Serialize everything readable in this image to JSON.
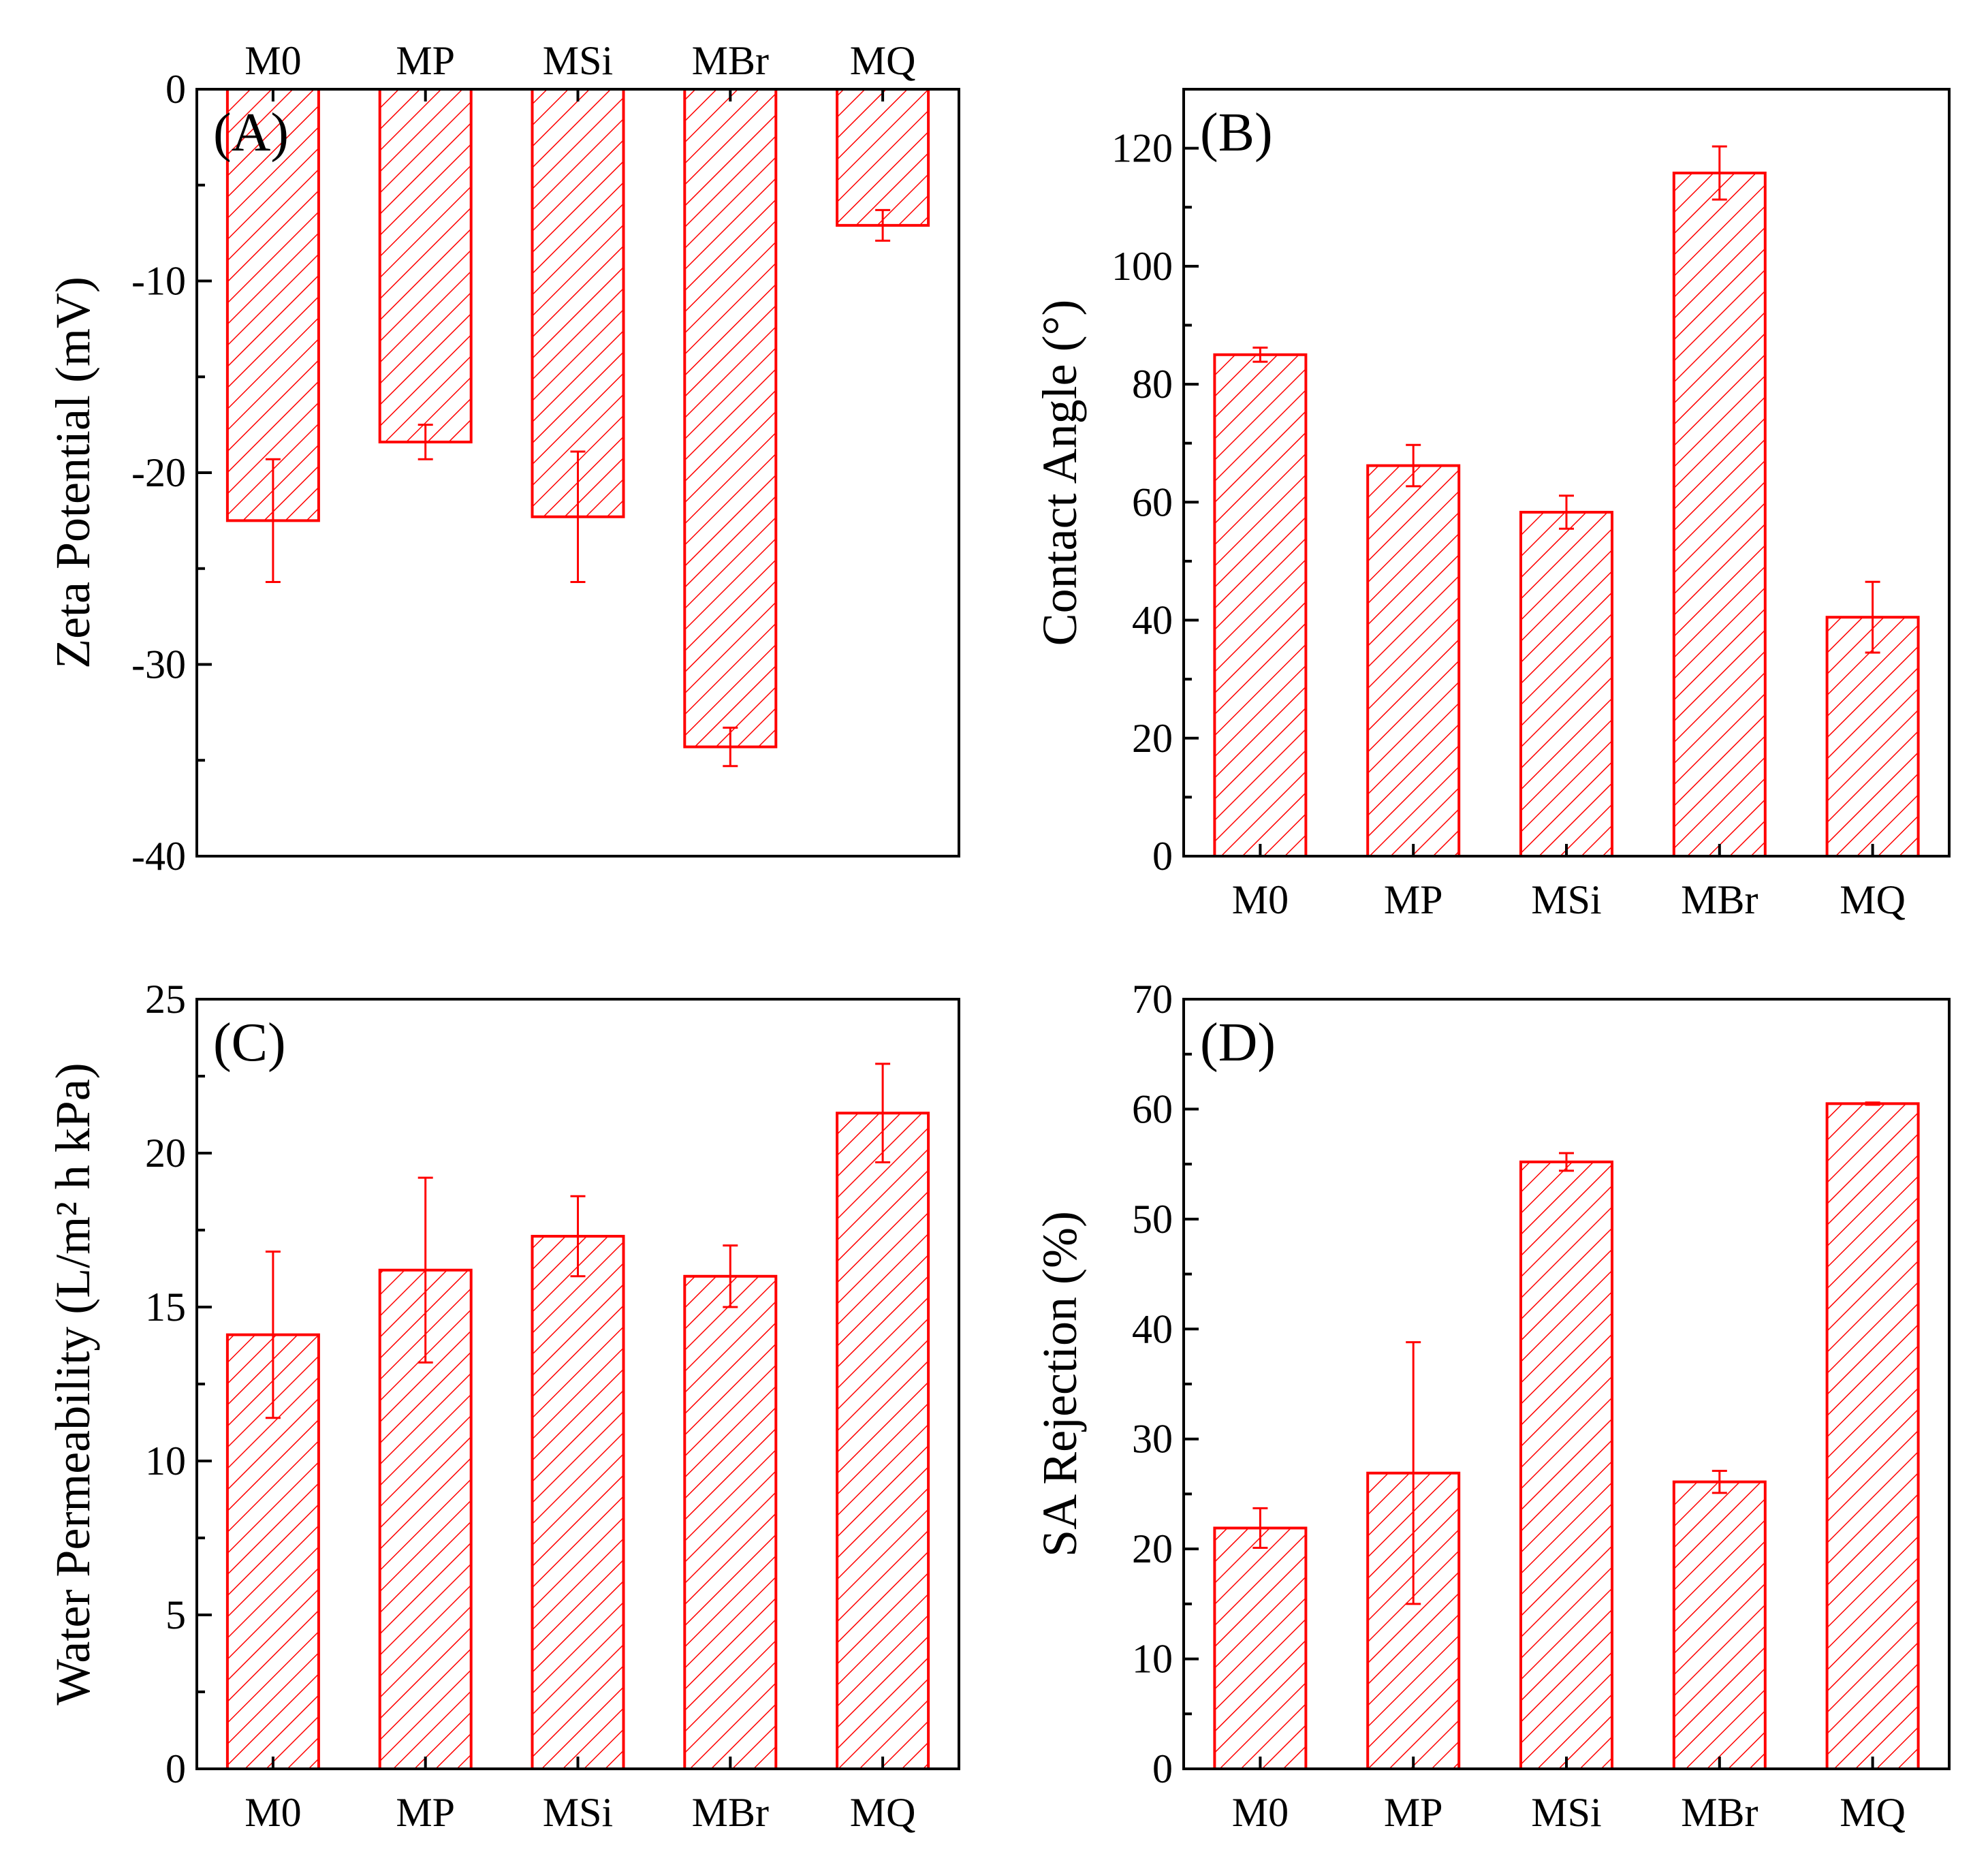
{
  "figure": {
    "accent_color": "#ff0000"
  },
  "chart_data": [
    {
      "id": "A",
      "type": "bar",
      "panel_label": "(A)",
      "title": "",
      "xlabel": "",
      "ylabel": "Zeta Potential (mV)",
      "categories": [
        "M0",
        "MP",
        "MSi",
        "MBr",
        "MQ"
      ],
      "values": [
        -22.5,
        -18.4,
        -22.3,
        -34.3,
        -7.1
      ],
      "errors": [
        3.2,
        0.9,
        3.4,
        1.0,
        0.8
      ],
      "ylim": [
        -40,
        0
      ],
      "yticks": [
        0,
        -10,
        -20,
        -30,
        -40
      ],
      "ytick_labels": [
        "0",
        "-10",
        "-20",
        "-30",
        "-40"
      ],
      "category_axis": "top",
      "grid": false
    },
    {
      "id": "B",
      "type": "bar",
      "panel_label": "(B)",
      "title": "",
      "xlabel": "",
      "ylabel": "Contact Angle (°)",
      "categories": [
        "M0",
        "MP",
        "MSi",
        "MBr",
        "MQ"
      ],
      "values": [
        85.0,
        66.2,
        58.3,
        115.8,
        40.5
      ],
      "errors": [
        1.2,
        3.5,
        2.8,
        4.5,
        6.0
      ],
      "ylim": [
        0,
        130
      ],
      "yticks": [
        0,
        20,
        40,
        60,
        80,
        100,
        120
      ],
      "ytick_labels": [
        "0",
        "20",
        "40",
        "60",
        "80",
        "100",
        "120"
      ],
      "category_axis": "bottom",
      "grid": false
    },
    {
      "id": "C",
      "type": "bar",
      "panel_label": "(C)",
      "title": "",
      "xlabel": "",
      "ylabel": "Water Permeability (L/m² h kPa)",
      "categories": [
        "M0",
        "MP",
        "MSi",
        "MBr",
        "MQ"
      ],
      "values": [
        14.1,
        16.2,
        17.3,
        16.0,
        21.3
      ],
      "errors": [
        2.7,
        3.0,
        1.3,
        1.0,
        1.6
      ],
      "ylim": [
        0,
        25
      ],
      "yticks": [
        0,
        5,
        10,
        15,
        20,
        25
      ],
      "ytick_labels": [
        "0",
        "5",
        "10",
        "15",
        "20",
        "25"
      ],
      "category_axis": "bottom",
      "grid": false
    },
    {
      "id": "D",
      "type": "bar",
      "panel_label": "(D)",
      "title": "",
      "xlabel": "",
      "ylabel": "SA Rejection (%)",
      "categories": [
        "M0",
        "MP",
        "MSi",
        "MBr",
        "MQ"
      ],
      "values": [
        21.9,
        26.9,
        55.2,
        26.1,
        60.5
      ],
      "errors": [
        1.8,
        11.9,
        0.8,
        1.0,
        0.1
      ],
      "ylim": [
        0,
        70
      ],
      "yticks": [
        0,
        10,
        20,
        30,
        40,
        50,
        60,
        70
      ],
      "ytick_labels": [
        "0",
        "10",
        "20",
        "30",
        "40",
        "50",
        "60",
        "70"
      ],
      "category_axis": "bottom",
      "grid": false
    }
  ]
}
